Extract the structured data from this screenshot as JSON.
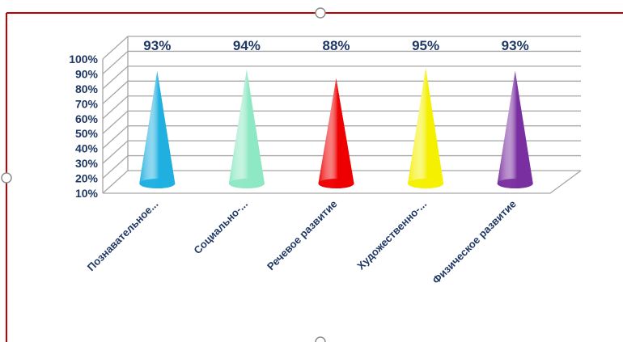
{
  "chart_data": {
    "type": "bar",
    "style": "3d-cone",
    "categories": [
      "Познавательное...",
      "Социально-...",
      "Речевое развитие",
      "Художественно-...",
      "Физическое развитие"
    ],
    "values": [
      93,
      94,
      88,
      95,
      93
    ],
    "value_labels": [
      "93%",
      "94%",
      "88%",
      "95%",
      "93%"
    ],
    "colors": [
      "#1fb0e0",
      "#8ee8c4",
      "#ee0000",
      "#f4f000",
      "#7a2fa0"
    ],
    "ylim": [
      10,
      100
    ],
    "yticks": [
      "10%",
      "20%",
      "30%",
      "40%",
      "50%",
      "60%",
      "70%",
      "80%",
      "90%",
      "100%"
    ],
    "grid": true,
    "title": "",
    "xlabel": "",
    "ylabel": ""
  },
  "colors": {
    "frame_border": "#c00000",
    "text": "#1f3864",
    "grid": "#a6a6a6"
  }
}
